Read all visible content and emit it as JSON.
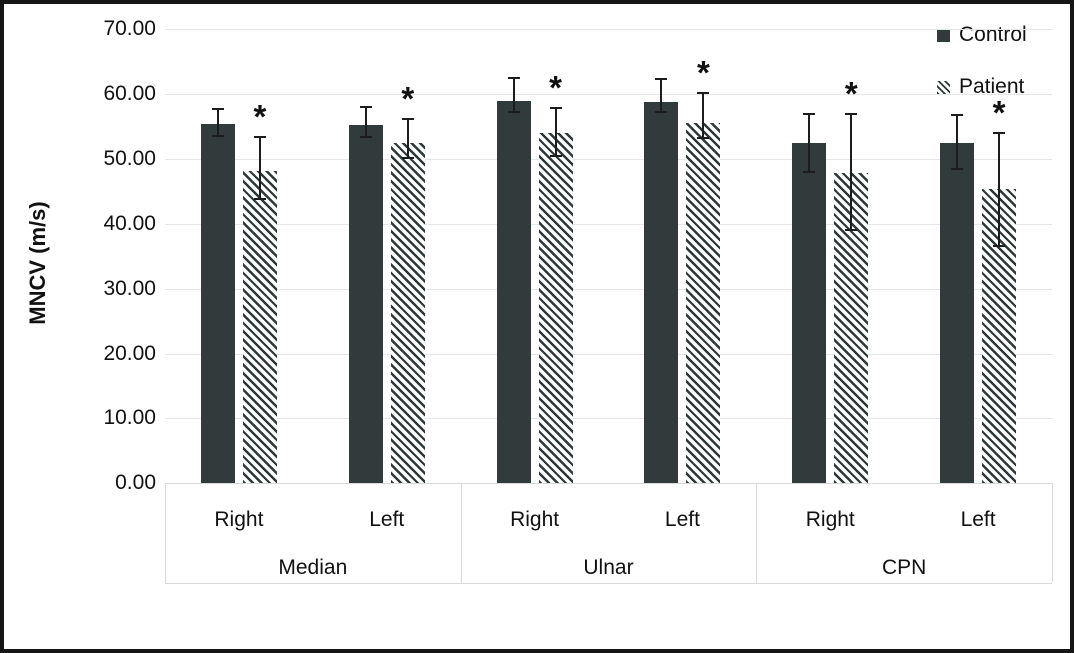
{
  "figure": {
    "ylabel": "MNCV (m/s)"
  },
  "legend": {
    "control_label": "Control",
    "patient_label": "Patient"
  },
  "colors": {
    "bar_dark": "#313b3c",
    "hatch_foreground": "#2e3839",
    "gridline": "#e4e7e7",
    "axis_box": "#d9d9d9",
    "figure_border": "#161616",
    "text": "#111111"
  },
  "chart_data": {
    "type": "bar",
    "title": "",
    "xlabel": "",
    "ylabel": "MNCV (m/s)",
    "ylim": [
      0,
      70
    ],
    "ytick_step": 10,
    "ytick_labels": [
      "0.00",
      "10.00",
      "20.00",
      "30.00",
      "40.00",
      "50.00",
      "60.00",
      "70.00"
    ],
    "grid": true,
    "legend_position": "top-right",
    "sig_marker": "*",
    "groups": [
      {
        "label": "Median",
        "sides": [
          "Right",
          "Left"
        ]
      },
      {
        "label": "Ulnar",
        "sides": [
          "Right",
          "Left"
        ]
      },
      {
        "label": "CPN",
        "sides": [
          "Right",
          "Left"
        ]
      }
    ],
    "categories": [
      "Median Right",
      "Median Left",
      "Ulnar Right",
      "Ulnar Left",
      "CPN Right",
      "CPN Left"
    ],
    "series": [
      {
        "name": "Control",
        "pattern": "solid",
        "values": [
          55.4,
          55.2,
          59.0,
          58.8,
          52.5,
          52.4
        ],
        "error_hi": [
          57.7,
          58.0,
          62.5,
          62.4,
          56.9,
          56.8
        ],
        "error_lo": [
          53.6,
          53.4,
          57.3,
          57.2,
          48.0,
          48.4
        ],
        "significant": [
          false,
          false,
          false,
          false,
          false,
          false
        ]
      },
      {
        "name": "Patient",
        "pattern": "hatch",
        "values": [
          48.1,
          52.4,
          54.0,
          55.5,
          47.8,
          45.3
        ],
        "error_hi": [
          53.4,
          56.2,
          57.8,
          60.2,
          56.9,
          54.0
        ],
        "error_lo": [
          43.9,
          50.1,
          50.4,
          53.2,
          39.0,
          36.6
        ],
        "significant": [
          true,
          true,
          true,
          true,
          true,
          true
        ]
      }
    ]
  }
}
